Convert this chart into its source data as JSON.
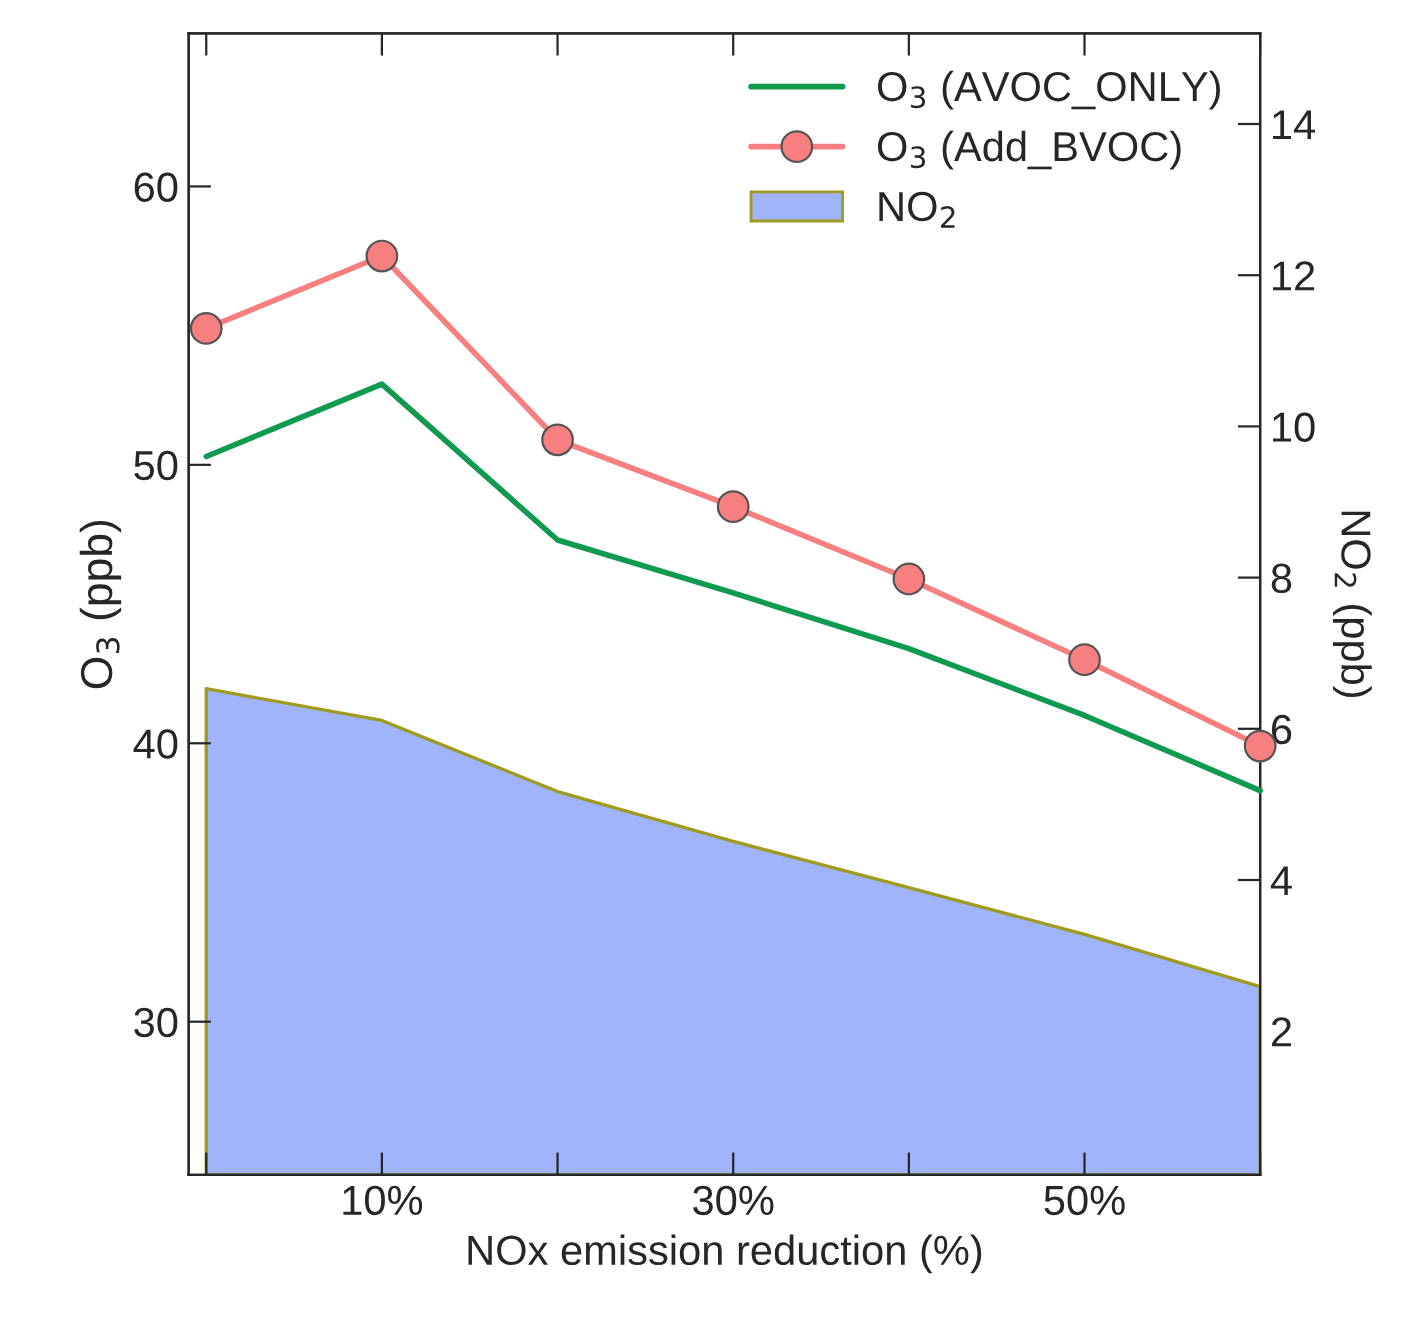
{
  "chart_data": {
    "type": "line",
    "xlabel": "NOx emission reduction (%)",
    "ylabel": "O$_{3}$ (ppb)",
    "y2label": "NO$_{2}$ (ppb)",
    "x": [
      0,
      10,
      20,
      30,
      40,
      50,
      60
    ],
    "series": [
      {
        "name": "O$_{3}$ (AVOC_ONLY)",
        "color": "#109a50",
        "marker": "none",
        "values": [
          50.3,
          52.9,
          47.3,
          45.4,
          43.4,
          41.0,
          38.3
        ]
      },
      {
        "name": "O$_{3}$ (Add_BVOC)",
        "color": "#f87f7f",
        "marker": "circle",
        "values": [
          54.9,
          57.5,
          50.9,
          48.5,
          45.9,
          43.0,
          39.9
        ]
      },
      {
        "name": "NO$_{2}$",
        "type": "area",
        "axis": "y2",
        "color": "#a0b4fc",
        "values": [
          6.53,
          6.11,
          5.17,
          4.51,
          3.9,
          3.28,
          2.59
        ]
      }
    ],
    "xlim": [
      -1,
      60
    ],
    "xticks": [
      {
        "value": 0,
        "label": null
      },
      {
        "value": 10,
        "label": "10%"
      },
      {
        "value": 20,
        "label": null
      },
      {
        "value": 30,
        "label": "30%"
      },
      {
        "value": 40,
        "label": null
      },
      {
        "value": 50,
        "label": "50%"
      },
      {
        "value": 60,
        "label": null
      }
    ],
    "ylim": [
      24.5,
      65.5
    ],
    "yticks": [
      30,
      40,
      50,
      60
    ],
    "y2lim": [
      0.1,
      15.2
    ],
    "y2ticks": [
      2,
      4,
      6,
      8,
      10,
      12,
      14
    ],
    "legend": "top right",
    "grid": false,
    "line_style": "solid"
  }
}
